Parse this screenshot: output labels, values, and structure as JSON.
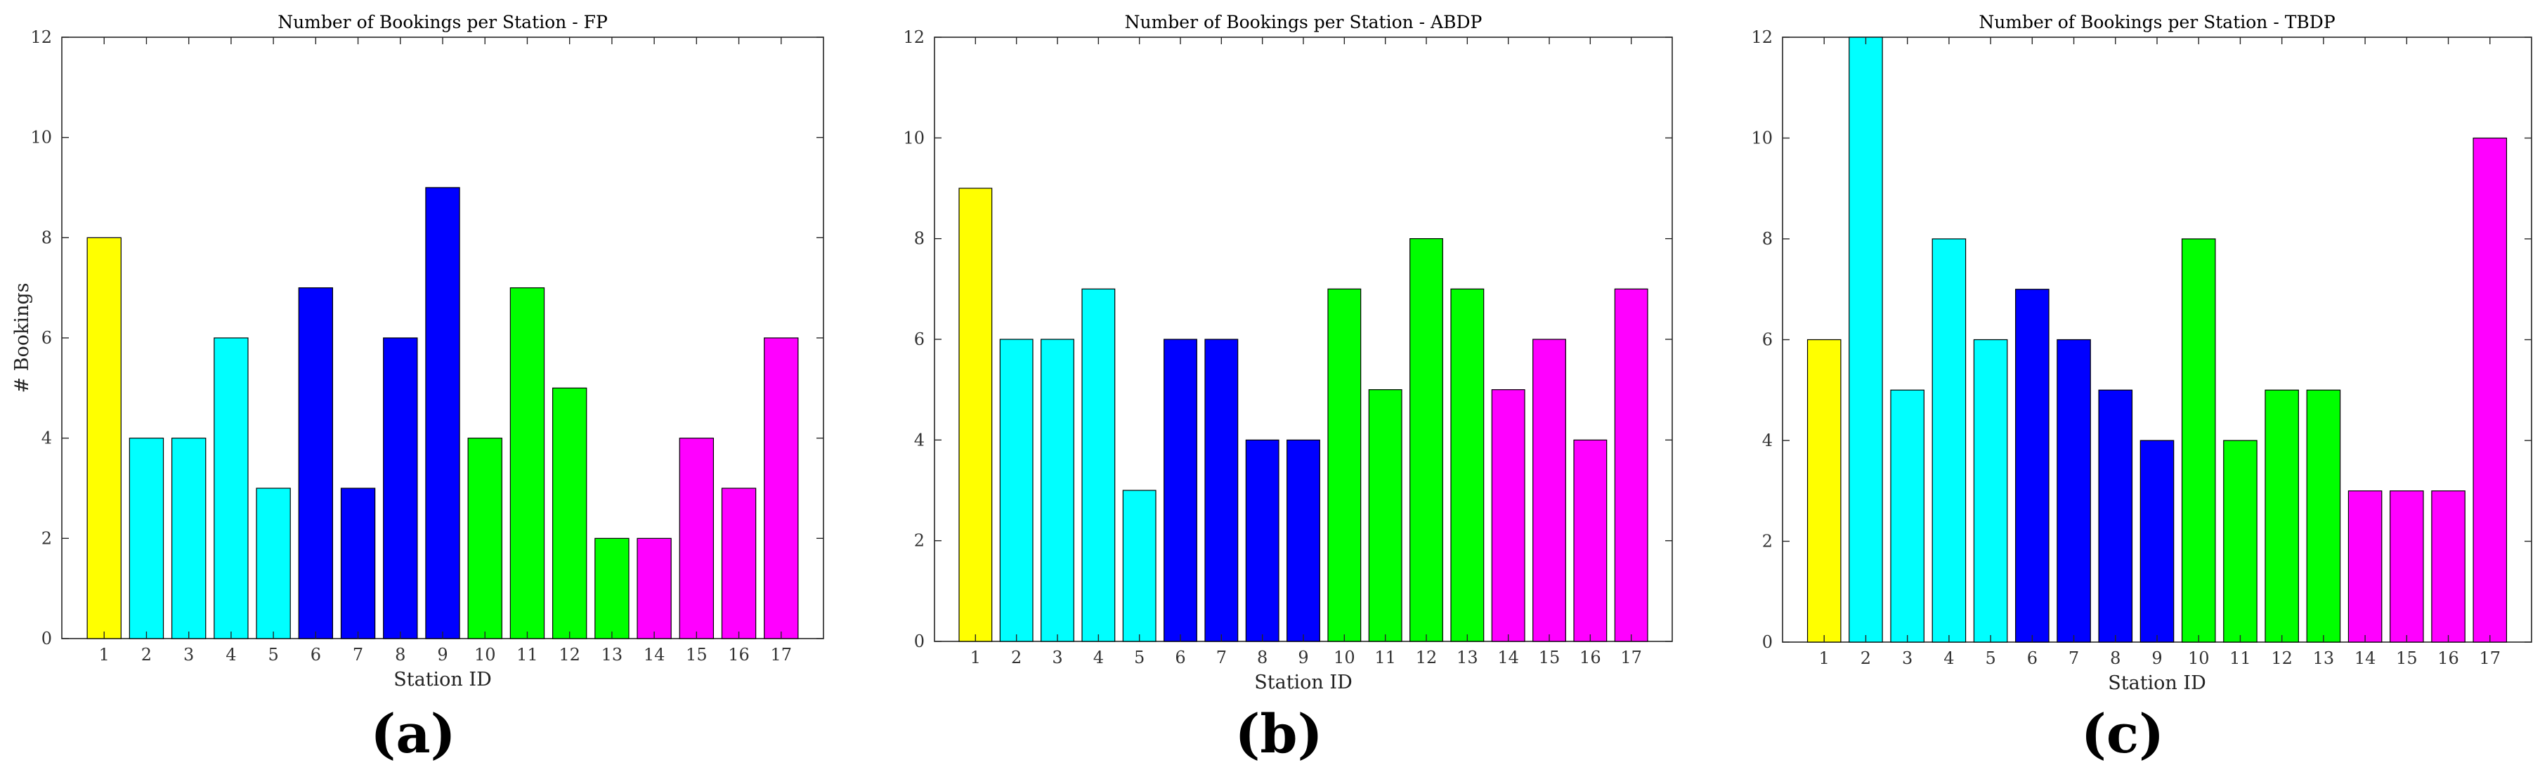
{
  "chart_data": [
    {
      "type": "bar",
      "title": "Number of Bookings per Station - FP",
      "xlabel": "Station ID",
      "ylabel": "# Bookings",
      "ylim": [
        0,
        12
      ],
      "yticks": [
        0,
        2,
        4,
        6,
        8,
        10,
        12
      ],
      "categories": [
        "1",
        "2",
        "3",
        "4",
        "5",
        "6",
        "7",
        "8",
        "9",
        "10",
        "11",
        "12",
        "13",
        "14",
        "15",
        "16",
        "17"
      ],
      "values": [
        8,
        4,
        4,
        6,
        3,
        7,
        3,
        6,
        9,
        4,
        7,
        5,
        2,
        2,
        4,
        3,
        6
      ],
      "bar_colors": [
        "#ffff00",
        "#00ffff",
        "#00ffff",
        "#00ffff",
        "#00ffff",
        "#0000ff",
        "#0000ff",
        "#0000ff",
        "#0000ff",
        "#00ff00",
        "#00ff00",
        "#00ff00",
        "#00ff00",
        "#ff00ff",
        "#ff00ff",
        "#ff00ff",
        "#ff00ff"
      ],
      "grid": false,
      "panel_label": "(a)"
    },
    {
      "type": "bar",
      "title": "Number of Bookings per Station - ABDP",
      "xlabel": "Station ID",
      "ylabel": "",
      "ylim": [
        0,
        12
      ],
      "yticks": [
        0,
        2,
        4,
        6,
        8,
        10,
        12
      ],
      "categories": [
        "1",
        "2",
        "3",
        "4",
        "5",
        "6",
        "7",
        "8",
        "9",
        "10",
        "11",
        "12",
        "13",
        "14",
        "15",
        "16",
        "17"
      ],
      "values": [
        9,
        6,
        6,
        7,
        3,
        6,
        6,
        4,
        4,
        7,
        5,
        8,
        7,
        5,
        6,
        4,
        7
      ],
      "bar_colors": [
        "#ffff00",
        "#00ffff",
        "#00ffff",
        "#00ffff",
        "#00ffff",
        "#0000ff",
        "#0000ff",
        "#0000ff",
        "#0000ff",
        "#00ff00",
        "#00ff00",
        "#00ff00",
        "#00ff00",
        "#ff00ff",
        "#ff00ff",
        "#ff00ff",
        "#ff00ff"
      ],
      "grid": false,
      "panel_label": "(b)"
    },
    {
      "type": "bar",
      "title": "Number of Bookings per Station - TBDP",
      "xlabel": "Station ID",
      "ylabel": "",
      "ylim": [
        0,
        12
      ],
      "yticks": [
        0,
        2,
        4,
        6,
        8,
        10,
        12
      ],
      "categories": [
        "1",
        "2",
        "3",
        "4",
        "5",
        "6",
        "7",
        "8",
        "9",
        "10",
        "11",
        "12",
        "13",
        "14",
        "15",
        "16",
        "17"
      ],
      "values": [
        6,
        12,
        5,
        8,
        6,
        7,
        6,
        5,
        4,
        8,
        4,
        5,
        5,
        3,
        3,
        3,
        10
      ],
      "bar_colors": [
        "#ffff00",
        "#00ffff",
        "#00ffff",
        "#00ffff",
        "#00ffff",
        "#0000ff",
        "#0000ff",
        "#0000ff",
        "#0000ff",
        "#00ff00",
        "#00ff00",
        "#00ff00",
        "#00ff00",
        "#ff00ff",
        "#ff00ff",
        "#ff00ff",
        "#ff00ff"
      ],
      "grid": false,
      "panel_label": "(c)"
    }
  ]
}
